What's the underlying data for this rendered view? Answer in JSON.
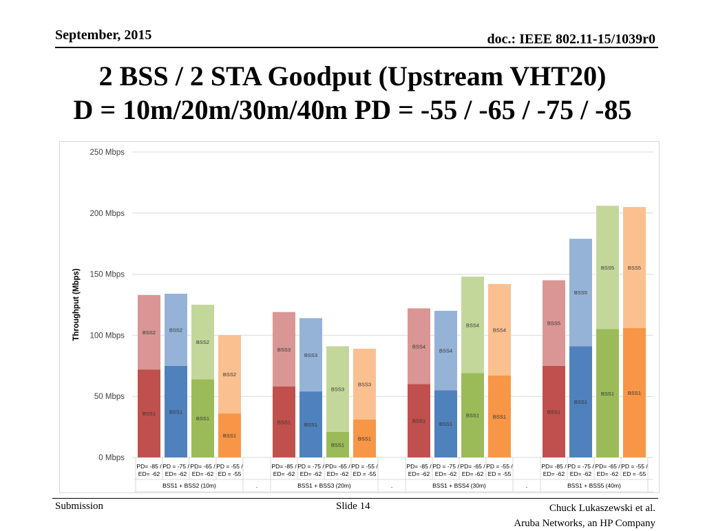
{
  "header": {
    "date": "September, 2015",
    "doc": "doc.: IEEE 802.11-15/1039r0"
  },
  "title": {
    "line1": "2 BSS / 2 STA Goodput (Upstream VHT20)",
    "line2": "D = 10m/20m/30m/40m  PD = -55 / -65 / -75 / -85"
  },
  "footer": {
    "left": "Submission",
    "center": "Slide 14",
    "right_line1": "Chuck Lukaszewski et al.",
    "right_line2": "Aruba Networks, an HP Company"
  },
  "colors": {
    "red_dark": "#c0504d",
    "red_light": "#da9694",
    "blue_dark": "#4f81bd",
    "blue_light": "#95b3d7",
    "green_dark": "#9bbb59",
    "green_light": "#c4d79b",
    "orange_dark": "#f79646",
    "orange_light": "#fac090"
  },
  "chart_data": {
    "type": "bar",
    "stacked": true,
    "ylabel": "Throughput (Mbps)",
    "ylim": [
      0,
      250
    ],
    "y_ticks": [
      {
        "value": 0,
        "label": "0 Mbps"
      },
      {
        "value": 50,
        "label": "50 Mbps"
      },
      {
        "value": 100,
        "label": "100 Mbps"
      },
      {
        "value": 150,
        "label": "150 Mbps"
      },
      {
        "value": 200,
        "label": "200 Mbps"
      },
      {
        "value": 250,
        "label": "250 Mbps"
      }
    ],
    "grid": true,
    "groups": [
      {
        "label": "BSS1 + BSS2 (10m)",
        "bars": [
          {
            "cat1": "PD= -85 /",
            "cat2": "ED= -62",
            "color": "red",
            "bottom": {
              "label": "BSS1",
              "value": 72
            },
            "top": {
              "label": "BSS2",
              "value": 61
            }
          },
          {
            "cat1": "PD = -75 /",
            "cat2": "ED= -62",
            "color": "blue",
            "bottom": {
              "label": "BSS1",
              "value": 75
            },
            "top": {
              "label": "BSS2",
              "value": 59
            }
          },
          {
            "cat1": "PD= -65 /",
            "cat2": "ED= -62",
            "color": "green",
            "bottom": {
              "label": "BSS1",
              "value": 64
            },
            "top": {
              "label": "BSS2",
              "value": 61
            }
          },
          {
            "cat1": "PD = -55 /",
            "cat2": "ED = -55",
            "color": "orange",
            "bottom": {
              "label": "BSS1",
              "value": 36
            },
            "top": {
              "label": "BSS2",
              "value": 64
            }
          }
        ]
      },
      {
        "label": "BSS1 + BSS3 (20m)",
        "bars": [
          {
            "cat1": "PD= -85 /",
            "cat2": "ED= -62",
            "color": "red",
            "bottom": {
              "label": "BSS1",
              "value": 58
            },
            "top": {
              "label": "BSS3",
              "value": 61
            }
          },
          {
            "cat1": "PD = -75 /",
            "cat2": "ED= -62",
            "color": "blue",
            "bottom": {
              "label": "BSS1",
              "value": 54
            },
            "top": {
              "label": "BSS3",
              "value": 60
            }
          },
          {
            "cat1": "PD= -65 /",
            "cat2": "ED= -62",
            "color": "green",
            "bottom": {
              "label": "BSS1",
              "value": 21
            },
            "top": {
              "label": "BSS3",
              "value": 70
            }
          },
          {
            "cat1": "PD = -55 /",
            "cat2": "ED = -55",
            "color": "orange",
            "bottom": {
              "label": "BSS1",
              "value": 31
            },
            "top": {
              "label": "BSS3",
              "value": 58
            }
          }
        ]
      },
      {
        "label": "BSS1 + BSS4 (30m)",
        "bars": [
          {
            "cat1": "PD= -85 /",
            "cat2": "ED= -62",
            "color": "red",
            "bottom": {
              "label": "BSS1",
              "value": 60
            },
            "top": {
              "label": "BSS4",
              "value": 62
            }
          },
          {
            "cat1": "PD = -75 /",
            "cat2": "ED= -62",
            "color": "blue",
            "bottom": {
              "label": "BSS1",
              "value": 55
            },
            "top": {
              "label": "BSS4",
              "value": 65
            }
          },
          {
            "cat1": "PD= -65 /",
            "cat2": "ED= -62",
            "color": "green",
            "bottom": {
              "label": "BSS1",
              "value": 69
            },
            "top": {
              "label": "BSS4",
              "value": 79
            }
          },
          {
            "cat1": "PD = -55 /",
            "cat2": "ED = -55",
            "color": "orange",
            "bottom": {
              "label": "BSS1",
              "value": 67
            },
            "top": {
              "label": "BSS4",
              "value": 75
            }
          }
        ]
      },
      {
        "label": "BSS1 + BSS5 (40m)",
        "bars": [
          {
            "cat1": "PD= -85 /",
            "cat2": "ED= -62",
            "color": "red",
            "bottom": {
              "label": "BSS1",
              "value": 75
            },
            "top": {
              "label": "BSS5",
              "value": 70
            }
          },
          {
            "cat1": "PD = -75 /",
            "cat2": "ED= -62",
            "color": "blue",
            "bottom": {
              "label": "BSS1",
              "value": 91
            },
            "top": {
              "label": "BSS5",
              "value": 88
            }
          },
          {
            "cat1": "PD= -65 /",
            "cat2": "ED= -62",
            "color": "green",
            "bottom": {
              "label": "BSS1",
              "value": 105
            },
            "top": {
              "label": "BSS5",
              "value": 101
            }
          },
          {
            "cat1": "PD = -55 /",
            "cat2": "ED = -55",
            "color": "orange",
            "bottom": {
              "label": "BSS1",
              "value": 106
            },
            "top": {
              "label": "BSS5",
              "value": 99
            }
          }
        ]
      }
    ],
    "separator_marks": [
      ".",
      ".",
      "."
    ]
  }
}
